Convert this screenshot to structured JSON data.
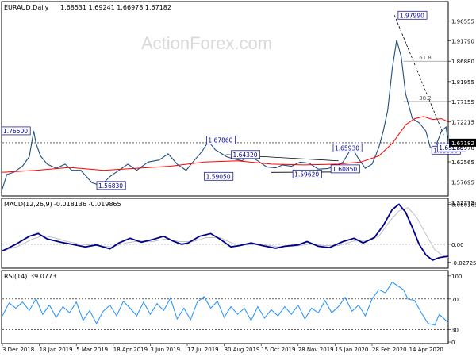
{
  "header": {
    "symbol": "EURAUD,Daily",
    "ohlc": "1.68531 1.69241 1.66978 1.67182"
  },
  "watermark": "ActionForex.com",
  "colors": {
    "price": "#1f4f7f",
    "sma": "#ff0000",
    "macd": "#00008b",
    "signal": "#c0c0c0",
    "rsi": "#1e90ff",
    "label_border": "#00008b",
    "current_box": "#000000",
    "grid_dotted": "#000000"
  },
  "chart_data": [
    {
      "type": "line",
      "panel": "price",
      "title": "EURAUD,Daily",
      "ylim": [
        1.545,
        1.99
      ],
      "y_ticks": [
        "1.96555",
        "1.91790",
        "1.86880",
        "1.81955",
        "1.77155",
        "1.72215",
        "1.67182",
        "1.65970",
        "1.62565",
        "1.57695",
        "1.52775"
      ],
      "x_tick_labels": [
        "3 Dec 2018",
        "18 Jan 2019",
        "5 Mar 2019",
        "18 Apr 2019",
        "3 Jun 2019",
        "17 Jul 2019",
        "30 Aug 2019",
        "15 Oct 2019",
        "28 Nov 2019",
        "15 Jan 2020",
        "28 Feb 2020",
        "14 Apr 2020"
      ],
      "x_tick_index": [
        0,
        33,
        66,
        99,
        132,
        165,
        198,
        231,
        264,
        297,
        330,
        363
      ],
      "series": [
        {
          "key": "price",
          "points": [
            [
              0,
              1.56
            ],
            [
              4,
              1.595
            ],
            [
              10,
              1.6
            ],
            [
              18,
              1.615
            ],
            [
              24,
              1.638
            ],
            [
              28,
              1.7
            ],
            [
              30,
              1.67
            ],
            [
              34,
              1.64
            ],
            [
              40,
              1.62
            ],
            [
              48,
              1.61
            ],
            [
              56,
              1.62
            ],
            [
              62,
              1.605
            ],
            [
              70,
              1.605
            ],
            [
              80,
              1.575
            ],
            [
              88,
              1.568
            ],
            [
              96,
              1.59
            ],
            [
              104,
              1.605
            ],
            [
              112,
              1.62
            ],
            [
              120,
              1.605
            ],
            [
              130,
              1.625
            ],
            [
              140,
              1.63
            ],
            [
              148,
              1.645
            ],
            [
              156,
              1.62
            ],
            [
              164,
              1.605
            ],
            [
              170,
              1.625
            ],
            [
              178,
              1.65
            ],
            [
              184,
              1.675
            ],
            [
              190,
              1.655
            ],
            [
              196,
              1.645
            ],
            [
              200,
              1.638
            ],
            [
              206,
              1.633
            ],
            [
              214,
              1.628
            ],
            [
              220,
              1.64
            ],
            [
              228,
              1.628
            ],
            [
              236,
              1.613
            ],
            [
              244,
              1.611
            ],
            [
              250,
              1.618
            ],
            [
              258,
              1.615
            ],
            [
              266,
              1.625
            ],
            [
              274,
              1.622
            ],
            [
              282,
              1.608
            ],
            [
              290,
              1.609
            ],
            [
              298,
              1.615
            ],
            [
              304,
              1.625
            ],
            [
              312,
              1.66
            ],
            [
              318,
              1.633
            ],
            [
              324,
              1.61
            ],
            [
              330,
              1.62
            ],
            [
              336,
              1.66
            ],
            [
              340,
              1.7
            ],
            [
              344,
              1.75
            ],
            [
              348,
              1.85
            ],
            [
              352,
              1.92
            ],
            [
              356,
              1.88
            ],
            [
              360,
              1.79
            ],
            [
              366,
              1.73
            ],
            [
              372,
              1.72
            ],
            [
              378,
              1.7
            ],
            [
              382,
              1.66
            ],
            [
              386,
              1.658
            ],
            [
              392,
              1.7
            ],
            [
              396,
              1.71
            ],
            [
              398,
              1.672
            ]
          ]
        },
        {
          "key": "sma",
          "points": [
            [
              0,
              1.6
            ],
            [
              30,
              1.605
            ],
            [
              60,
              1.612
            ],
            [
              90,
              1.605
            ],
            [
              120,
              1.61
            ],
            [
              150,
              1.615
            ],
            [
              180,
              1.625
            ],
            [
              210,
              1.628
            ],
            [
              240,
              1.62
            ],
            [
              270,
              1.618
            ],
            [
              300,
              1.62
            ],
            [
              320,
              1.625
            ],
            [
              336,
              1.64
            ],
            [
              348,
              1.67
            ],
            [
              360,
              1.715
            ],
            [
              368,
              1.73
            ],
            [
              376,
              1.735
            ],
            [
              384,
              1.728
            ],
            [
              392,
              1.73
            ],
            [
              398,
              1.722
            ]
          ]
        }
      ],
      "annotations": [
        {
          "text": "1.97990",
          "x": 354,
          "y": 1.9799
        },
        {
          "text": "1.65380",
          "x": 384,
          "y": 1.6538
        },
        {
          "text": "1.65970",
          "x": 389,
          "y": 1.6597
        },
        {
          "text": "1.76500",
          "x": 0,
          "y": 1.7005
        },
        {
          "text": "1.67860",
          "x": 183,
          "y": 1.6786
        },
        {
          "text": "1.64320",
          "x": 205,
          "y": 1.6432
        },
        {
          "text": "1.65930",
          "x": 296,
          "y": 1.6593
        },
        {
          "text": "1.59050",
          "x": 181,
          "y": 1.5905
        },
        {
          "text": "1.56830",
          "x": 85,
          "y": 1.5683
        },
        {
          "text": "1.59620",
          "x": 260,
          "y": 1.5962
        },
        {
          "text": "1.60850",
          "x": 294,
          "y": 1.6085
        }
      ],
      "fib_levels": [
        {
          "text": "61.8",
          "y": 1.8688
        },
        {
          "text": "38.2",
          "y": 1.7715
        }
      ]
    },
    {
      "type": "line",
      "panel": "macd",
      "title": "MACD(12,26,9)",
      "values_label": "-0.018136 -0.019865",
      "ylim": [
        -0.0335,
        0.0665
      ],
      "y_ticks": [
        "0.060165",
        "0.00",
        "-0.02725"
      ],
      "series": [
        {
          "key": "macd",
          "points": [
            [
              0,
              -0.01
            ],
            [
              12,
              0.0
            ],
            [
              24,
              0.012
            ],
            [
              32,
              0.016
            ],
            [
              40,
              0.008
            ],
            [
              52,
              0.003
            ],
            [
              62,
              0.0
            ],
            [
              74,
              -0.004
            ],
            [
              84,
              -0.001
            ],
            [
              96,
              -0.007
            ],
            [
              104,
              0.002
            ],
            [
              114,
              0.009
            ],
            [
              124,
              0.003
            ],
            [
              134,
              0.007
            ],
            [
              144,
              0.012
            ],
            [
              152,
              0.005
            ],
            [
              160,
              0.0
            ],
            [
              166,
              0.002
            ],
            [
              176,
              0.012
            ],
            [
              186,
              0.016
            ],
            [
              194,
              0.008
            ],
            [
              204,
              -0.004
            ],
            [
              212,
              -0.002
            ],
            [
              222,
              0.002
            ],
            [
              232,
              -0.002
            ],
            [
              244,
              -0.006
            ],
            [
              252,
              -0.003
            ],
            [
              264,
              -0.001
            ],
            [
              272,
              0.004
            ],
            [
              282,
              -0.003
            ],
            [
              292,
              -0.005
            ],
            [
              304,
              0.004
            ],
            [
              314,
              0.009
            ],
            [
              322,
              0.002
            ],
            [
              332,
              0.01
            ],
            [
              340,
              0.028
            ],
            [
              348,
              0.052
            ],
            [
              354,
              0.06
            ],
            [
              360,
              0.048
            ],
            [
              366,
              0.025
            ],
            [
              372,
              0.0
            ],
            [
              378,
              -0.016
            ],
            [
              384,
              -0.024
            ],
            [
              390,
              -0.02
            ],
            [
              398,
              -0.018
            ]
          ]
        },
        {
          "key": "signal",
          "points": [
            [
              0,
              -0.01
            ],
            [
              14,
              -0.003
            ],
            [
              26,
              0.007
            ],
            [
              36,
              0.013
            ],
            [
              46,
              0.01
            ],
            [
              58,
              0.004
            ],
            [
              70,
              0.0
            ],
            [
              84,
              -0.002
            ],
            [
              98,
              -0.004
            ],
            [
              110,
              0.002
            ],
            [
              122,
              0.005
            ],
            [
              134,
              0.004
            ],
            [
              146,
              0.008
            ],
            [
              158,
              0.004
            ],
            [
              170,
              0.004
            ],
            [
              182,
              0.01
            ],
            [
              194,
              0.01
            ],
            [
              206,
              0.001
            ],
            [
              218,
              -0.001
            ],
            [
              232,
              0.0
            ],
            [
              246,
              -0.004
            ],
            [
              260,
              -0.003
            ],
            [
              274,
              0.0
            ],
            [
              288,
              -0.002
            ],
            [
              300,
              -0.002
            ],
            [
              314,
              0.005
            ],
            [
              326,
              0.005
            ],
            [
              336,
              0.012
            ],
            [
              346,
              0.035
            ],
            [
              354,
              0.05
            ],
            [
              362,
              0.055
            ],
            [
              370,
              0.04
            ],
            [
              378,
              0.015
            ],
            [
              386,
              -0.008
            ],
            [
              392,
              -0.016
            ],
            [
              398,
              -0.02
            ]
          ]
        }
      ]
    },
    {
      "type": "line",
      "panel": "rsi",
      "title": "RSI(14)",
      "values_label": "39.0773",
      "ylim": [
        14,
        105
      ],
      "y_ticks": [
        "100",
        "70",
        "30",
        "0"
      ],
      "series": [
        {
          "key": "rsi",
          "points": [
            [
              0,
              48
            ],
            [
              6,
              65
            ],
            [
              12,
              58
            ],
            [
              18,
              66
            ],
            [
              24,
              55
            ],
            [
              30,
              70
            ],
            [
              36,
              50
            ],
            [
              42,
              62
            ],
            [
              48,
              46
            ],
            [
              54,
              60
            ],
            [
              60,
              52
            ],
            [
              66,
              66
            ],
            [
              72,
              42
            ],
            [
              78,
              55
            ],
            [
              84,
              38
            ],
            [
              90,
              54
            ],
            [
              96,
              62
            ],
            [
              102,
              48
            ],
            [
              108,
              67
            ],
            [
              114,
              58
            ],
            [
              120,
              48
            ],
            [
              126,
              66
            ],
            [
              132,
              50
            ],
            [
              138,
              64
            ],
            [
              144,
              55
            ],
            [
              150,
              71
            ],
            [
              156,
              44
            ],
            [
              162,
              58
            ],
            [
              168,
              43
            ],
            [
              174,
              66
            ],
            [
              180,
              73
            ],
            [
              186,
              58
            ],
            [
              192,
              67
            ],
            [
              198,
              46
            ],
            [
              204,
              60
            ],
            [
              210,
              50
            ],
            [
              216,
              58
            ],
            [
              222,
              42
            ],
            [
              228,
              60
            ],
            [
              234,
              45
            ],
            [
              240,
              56
            ],
            [
              246,
              48
            ],
            [
              252,
              60
            ],
            [
              258,
              50
            ],
            [
              264,
              62
            ],
            [
              270,
              44
            ],
            [
              276,
              58
            ],
            [
              282,
              52
            ],
            [
              288,
              68
            ],
            [
              294,
              52
            ],
            [
              300,
              60
            ],
            [
              306,
              72
            ],
            [
              312,
              54
            ],
            [
              318,
              62
            ],
            [
              324,
              48
            ],
            [
              330,
              70
            ],
            [
              336,
              82
            ],
            [
              342,
              78
            ],
            [
              348,
              92
            ],
            [
              352,
              88
            ],
            [
              358,
              82
            ],
            [
              362,
              70
            ],
            [
              368,
              68
            ],
            [
              374,
              52
            ],
            [
              380,
              38
            ],
            [
              386,
              36
            ],
            [
              390,
              50
            ],
            [
              396,
              42
            ],
            [
              398,
              39
            ]
          ]
        }
      ]
    }
  ]
}
